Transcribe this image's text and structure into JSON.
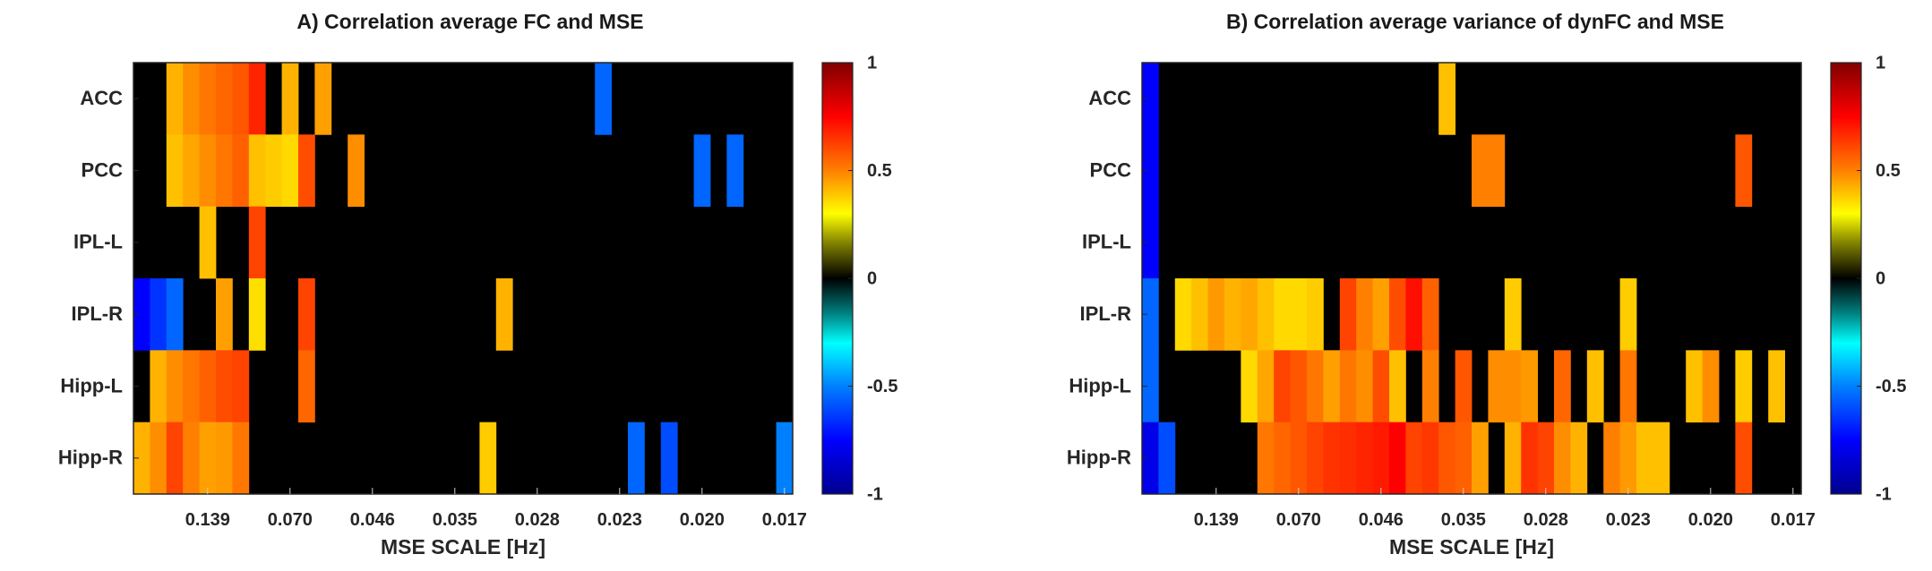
{
  "chart_data": [
    {
      "type": "heatmap",
      "title": "A) Correlation average FC and MSE",
      "xlabel": "MSE SCALE [Hz]",
      "ylabel": "",
      "y_categories": [
        "ACC",
        "PCC",
        "IPL-L",
        "IPL-R",
        "Hipp-L",
        "Hipp-R"
      ],
      "x_tick_labels": [
        "0.139",
        "0.070",
        "0.046",
        "0.035",
        "0.028",
        "0.023",
        "0.020",
        "0.017"
      ],
      "x_tick_positions": [
        4.5,
        9.5,
        14.5,
        19.5,
        24.5,
        29.5,
        34.5,
        39.5
      ],
      "n_columns": 40,
      "clim": [
        -1,
        1
      ],
      "colormap": "jet-with-black-center",
      "colorbar_ticks": [
        -1,
        -0.5,
        0,
        0.5,
        1
      ],
      "colorbar_tick_labels": [
        "-1",
        "-0.5",
        "0",
        "0.5",
        "1"
      ],
      "matrix": [
        [
          0,
          0,
          0.42,
          0.48,
          0.52,
          0.55,
          0.58,
          0.68,
          0,
          0.42,
          0,
          0.45,
          0,
          0,
          0,
          0,
          0,
          0,
          0,
          0,
          0,
          0,
          0,
          0,
          0,
          0,
          0,
          0,
          -0.55,
          0,
          0,
          0,
          0,
          0,
          0,
          0,
          0,
          0,
          0,
          0
        ],
        [
          0,
          0,
          0.4,
          0.44,
          0.48,
          0.52,
          0.56,
          0.4,
          0.38,
          0.36,
          0.6,
          0,
          0,
          0.48,
          0,
          0,
          0,
          0,
          0,
          0,
          0,
          0,
          0,
          0,
          0,
          0,
          0,
          0,
          0,
          0,
          0,
          0,
          0,
          0,
          -0.55,
          0,
          -0.55,
          0,
          0,
          0
        ],
        [
          0,
          0,
          0,
          0,
          0.4,
          0,
          0,
          0.62,
          0,
          0,
          0,
          0,
          0,
          0,
          0,
          0,
          0,
          0,
          0,
          0,
          0,
          0,
          0,
          0,
          0,
          0,
          0,
          0,
          0,
          0,
          0,
          0,
          0,
          0,
          0,
          0,
          0,
          0,
          0,
          0
        ],
        [
          -0.75,
          -0.65,
          -0.55,
          0,
          0,
          0.45,
          0,
          0.35,
          0,
          0,
          0.62,
          0,
          0,
          0,
          0,
          0,
          0,
          0,
          0,
          0,
          0,
          0,
          0.42,
          0,
          0,
          0,
          0,
          0,
          0,
          0,
          0,
          0,
          0,
          0,
          0,
          0,
          0,
          0,
          0,
          0
        ],
        [
          0,
          0.42,
          0.48,
          0.52,
          0.56,
          0.6,
          0.62,
          0,
          0,
          0,
          0.55,
          0,
          0,
          0,
          0,
          0,
          0,
          0,
          0,
          0,
          0,
          0,
          0,
          0,
          0,
          0,
          0,
          0,
          0,
          0,
          0,
          0,
          0,
          0,
          0,
          0,
          0,
          0,
          0,
          0
        ],
        [
          0.42,
          0.48,
          0.62,
          0.5,
          0.45,
          0.46,
          0.52,
          0,
          0,
          0,
          0,
          0,
          0,
          0,
          0,
          0,
          0,
          0,
          0,
          0,
          0,
          0.38,
          0,
          0,
          0,
          0,
          0,
          0,
          0,
          0,
          -0.55,
          0,
          -0.6,
          0,
          0,
          0,
          0,
          0,
          0,
          -0.5
        ]
      ]
    },
    {
      "type": "heatmap",
      "title": "B) Correlation average variance of dynFC and MSE",
      "xlabel": "MSE SCALE [Hz]",
      "ylabel": "",
      "y_categories": [
        "ACC",
        "PCC",
        "IPL-L",
        "IPL-R",
        "Hipp-L",
        "Hipp-R"
      ],
      "x_tick_labels": [
        "0.139",
        "0.070",
        "0.046",
        "0.035",
        "0.028",
        "0.023",
        "0.020",
        "0.017"
      ],
      "x_tick_positions": [
        4.5,
        9.5,
        14.5,
        19.5,
        24.5,
        29.5,
        34.5,
        39.5
      ],
      "n_columns": 40,
      "clim": [
        -1,
        1
      ],
      "colormap": "jet-with-black-center",
      "colorbar_ticks": [
        -1,
        -0.5,
        0,
        0.5,
        1
      ],
      "colorbar_tick_labels": [
        "-1",
        "-0.5",
        "0",
        "0.5",
        "1"
      ],
      "matrix": [
        [
          -0.75,
          0,
          0,
          0,
          0,
          0,
          0,
          0,
          0,
          0,
          0,
          0,
          0,
          0,
          0,
          0,
          0,
          0,
          0.4,
          0,
          0,
          0,
          0,
          0,
          0,
          0,
          0,
          0,
          0,
          0,
          0,
          0,
          0,
          0,
          0,
          0,
          0,
          0,
          0,
          0
        ],
        [
          -0.75,
          0,
          0,
          0,
          0,
          0,
          0,
          0,
          0,
          0,
          0,
          0,
          0,
          0,
          0,
          0,
          0,
          0,
          0,
          0,
          0.5,
          0.5,
          0,
          0,
          0,
          0,
          0,
          0,
          0,
          0,
          0,
          0,
          0,
          0,
          0,
          0,
          0.58,
          0,
          0,
          0
        ],
        [
          -0.75,
          0,
          0,
          0,
          0,
          0,
          0,
          0,
          0,
          0,
          0,
          0,
          0,
          0,
          0,
          0,
          0,
          0,
          0,
          0,
          0,
          0,
          0,
          0,
          0,
          0,
          0,
          0,
          0,
          0,
          0,
          0,
          0,
          0,
          0,
          0,
          0,
          0,
          0,
          0
        ],
        [
          -0.55,
          0,
          0.36,
          0.4,
          0.46,
          0.42,
          0.44,
          0.4,
          0.36,
          0.36,
          0.38,
          0,
          0.62,
          0.5,
          0.45,
          0.6,
          0.72,
          0.56,
          0,
          0,
          0,
          0,
          0.38,
          0,
          0,
          0,
          0,
          0,
          0,
          0.38,
          0,
          0,
          0,
          0,
          0,
          0,
          0,
          0,
          0,
          0
        ],
        [
          -0.55,
          0,
          0,
          0,
          0,
          0,
          0.36,
          0.44,
          0.62,
          0.58,
          0.52,
          0.45,
          0.52,
          0.48,
          0.6,
          0.4,
          0,
          0.5,
          0,
          0.58,
          0,
          0.48,
          0.48,
          0.46,
          0,
          0.55,
          0,
          0.4,
          0,
          0.52,
          0,
          0,
          0,
          0.4,
          0.48,
          0,
          0.38,
          0,
          0.4,
          0
        ],
        [
          -0.8,
          -0.6,
          0,
          0,
          0,
          0,
          0,
          0.52,
          0.55,
          0.58,
          0.62,
          0.65,
          0.66,
          0.68,
          0.7,
          0.75,
          0.62,
          0.64,
          0.58,
          0.56,
          0.45,
          0,
          0.42,
          0.65,
          0.62,
          0.48,
          0.42,
          0,
          0.5,
          0.46,
          0.4,
          0.4,
          0,
          0,
          0,
          0,
          0.6,
          0,
          0,
          0
        ]
      ]
    }
  ]
}
